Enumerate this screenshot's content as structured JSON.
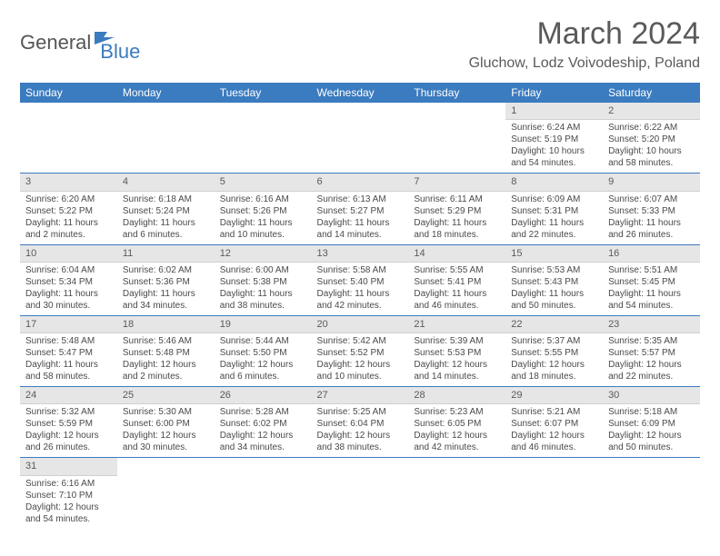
{
  "logo": {
    "text1": "General",
    "text2": "Blue",
    "color1": "#555555",
    "color2": "#3b7bbf"
  },
  "title": "March 2024",
  "location": "Gluchow, Lodz Voivodeship, Poland",
  "colors": {
    "header_bg": "#3b7bbf",
    "header_text": "#ffffff",
    "daynum_bg": "#e6e6e6",
    "row_divider": "#3b7bbf",
    "body_text": "#4a4a4a"
  },
  "fonts": {
    "title_size": 34,
    "location_size": 16,
    "th_size": 12,
    "cell_size": 10
  },
  "weekdays": [
    "Sunday",
    "Monday",
    "Tuesday",
    "Wednesday",
    "Thursday",
    "Friday",
    "Saturday"
  ],
  "weeks": [
    [
      {
        "empty": true
      },
      {
        "empty": true
      },
      {
        "empty": true
      },
      {
        "empty": true
      },
      {
        "empty": true
      },
      {
        "n": "1",
        "sunrise": "Sunrise: 6:24 AM",
        "sunset": "Sunset: 5:19 PM",
        "daylight": "Daylight: 10 hours and 54 minutes."
      },
      {
        "n": "2",
        "sunrise": "Sunrise: 6:22 AM",
        "sunset": "Sunset: 5:20 PM",
        "daylight": "Daylight: 10 hours and 58 minutes."
      }
    ],
    [
      {
        "n": "3",
        "sunrise": "Sunrise: 6:20 AM",
        "sunset": "Sunset: 5:22 PM",
        "daylight": "Daylight: 11 hours and 2 minutes."
      },
      {
        "n": "4",
        "sunrise": "Sunrise: 6:18 AM",
        "sunset": "Sunset: 5:24 PM",
        "daylight": "Daylight: 11 hours and 6 minutes."
      },
      {
        "n": "5",
        "sunrise": "Sunrise: 6:16 AM",
        "sunset": "Sunset: 5:26 PM",
        "daylight": "Daylight: 11 hours and 10 minutes."
      },
      {
        "n": "6",
        "sunrise": "Sunrise: 6:13 AM",
        "sunset": "Sunset: 5:27 PM",
        "daylight": "Daylight: 11 hours and 14 minutes."
      },
      {
        "n": "7",
        "sunrise": "Sunrise: 6:11 AM",
        "sunset": "Sunset: 5:29 PM",
        "daylight": "Daylight: 11 hours and 18 minutes."
      },
      {
        "n": "8",
        "sunrise": "Sunrise: 6:09 AM",
        "sunset": "Sunset: 5:31 PM",
        "daylight": "Daylight: 11 hours and 22 minutes."
      },
      {
        "n": "9",
        "sunrise": "Sunrise: 6:07 AM",
        "sunset": "Sunset: 5:33 PM",
        "daylight": "Daylight: 11 hours and 26 minutes."
      }
    ],
    [
      {
        "n": "10",
        "sunrise": "Sunrise: 6:04 AM",
        "sunset": "Sunset: 5:34 PM",
        "daylight": "Daylight: 11 hours and 30 minutes."
      },
      {
        "n": "11",
        "sunrise": "Sunrise: 6:02 AM",
        "sunset": "Sunset: 5:36 PM",
        "daylight": "Daylight: 11 hours and 34 minutes."
      },
      {
        "n": "12",
        "sunrise": "Sunrise: 6:00 AM",
        "sunset": "Sunset: 5:38 PM",
        "daylight": "Daylight: 11 hours and 38 minutes."
      },
      {
        "n": "13",
        "sunrise": "Sunrise: 5:58 AM",
        "sunset": "Sunset: 5:40 PM",
        "daylight": "Daylight: 11 hours and 42 minutes."
      },
      {
        "n": "14",
        "sunrise": "Sunrise: 5:55 AM",
        "sunset": "Sunset: 5:41 PM",
        "daylight": "Daylight: 11 hours and 46 minutes."
      },
      {
        "n": "15",
        "sunrise": "Sunrise: 5:53 AM",
        "sunset": "Sunset: 5:43 PM",
        "daylight": "Daylight: 11 hours and 50 minutes."
      },
      {
        "n": "16",
        "sunrise": "Sunrise: 5:51 AM",
        "sunset": "Sunset: 5:45 PM",
        "daylight": "Daylight: 11 hours and 54 minutes."
      }
    ],
    [
      {
        "n": "17",
        "sunrise": "Sunrise: 5:48 AM",
        "sunset": "Sunset: 5:47 PM",
        "daylight": "Daylight: 11 hours and 58 minutes."
      },
      {
        "n": "18",
        "sunrise": "Sunrise: 5:46 AM",
        "sunset": "Sunset: 5:48 PM",
        "daylight": "Daylight: 12 hours and 2 minutes."
      },
      {
        "n": "19",
        "sunrise": "Sunrise: 5:44 AM",
        "sunset": "Sunset: 5:50 PM",
        "daylight": "Daylight: 12 hours and 6 minutes."
      },
      {
        "n": "20",
        "sunrise": "Sunrise: 5:42 AM",
        "sunset": "Sunset: 5:52 PM",
        "daylight": "Daylight: 12 hours and 10 minutes."
      },
      {
        "n": "21",
        "sunrise": "Sunrise: 5:39 AM",
        "sunset": "Sunset: 5:53 PM",
        "daylight": "Daylight: 12 hours and 14 minutes."
      },
      {
        "n": "22",
        "sunrise": "Sunrise: 5:37 AM",
        "sunset": "Sunset: 5:55 PM",
        "daylight": "Daylight: 12 hours and 18 minutes."
      },
      {
        "n": "23",
        "sunrise": "Sunrise: 5:35 AM",
        "sunset": "Sunset: 5:57 PM",
        "daylight": "Daylight: 12 hours and 22 minutes."
      }
    ],
    [
      {
        "n": "24",
        "sunrise": "Sunrise: 5:32 AM",
        "sunset": "Sunset: 5:59 PM",
        "daylight": "Daylight: 12 hours and 26 minutes."
      },
      {
        "n": "25",
        "sunrise": "Sunrise: 5:30 AM",
        "sunset": "Sunset: 6:00 PM",
        "daylight": "Daylight: 12 hours and 30 minutes."
      },
      {
        "n": "26",
        "sunrise": "Sunrise: 5:28 AM",
        "sunset": "Sunset: 6:02 PM",
        "daylight": "Daylight: 12 hours and 34 minutes."
      },
      {
        "n": "27",
        "sunrise": "Sunrise: 5:25 AM",
        "sunset": "Sunset: 6:04 PM",
        "daylight": "Daylight: 12 hours and 38 minutes."
      },
      {
        "n": "28",
        "sunrise": "Sunrise: 5:23 AM",
        "sunset": "Sunset: 6:05 PM",
        "daylight": "Daylight: 12 hours and 42 minutes."
      },
      {
        "n": "29",
        "sunrise": "Sunrise: 5:21 AM",
        "sunset": "Sunset: 6:07 PM",
        "daylight": "Daylight: 12 hours and 46 minutes."
      },
      {
        "n": "30",
        "sunrise": "Sunrise: 5:18 AM",
        "sunset": "Sunset: 6:09 PM",
        "daylight": "Daylight: 12 hours and 50 minutes."
      }
    ],
    [
      {
        "n": "31",
        "sunrise": "Sunrise: 6:16 AM",
        "sunset": "Sunset: 7:10 PM",
        "daylight": "Daylight: 12 hours and 54 minutes."
      },
      {
        "empty": true
      },
      {
        "empty": true
      },
      {
        "empty": true
      },
      {
        "empty": true
      },
      {
        "empty": true
      },
      {
        "empty": true
      }
    ]
  ]
}
